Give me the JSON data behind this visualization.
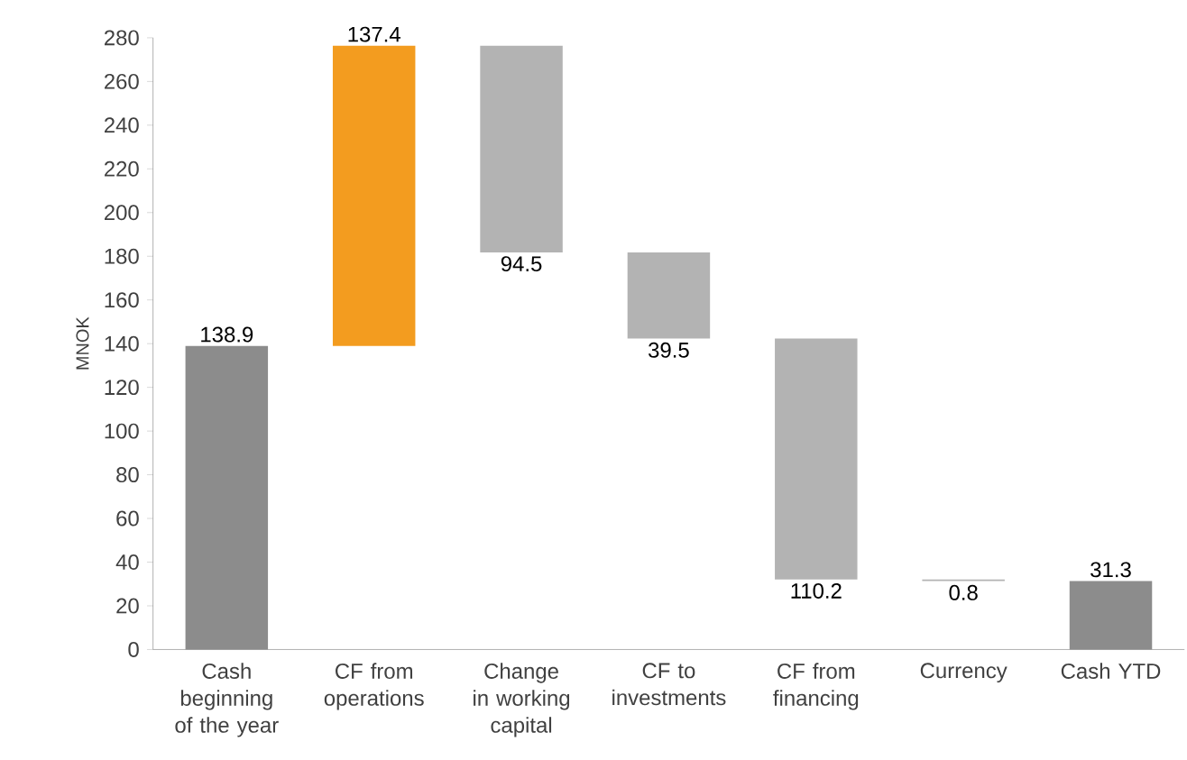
{
  "chart_data": {
    "type": "bar",
    "ylabel": "MNOK",
    "categories": [
      "Cash beginning of the year",
      "CF from operations",
      "Change in working capital",
      "CF to investments",
      "CF from financing",
      "Currency",
      "Cash YTD"
    ],
    "values": [
      138.9,
      137.4,
      -94.5,
      -39.5,
      -110.2,
      -0.8,
      31.3
    ],
    "base": [
      0,
      138.9,
      276.3,
      181.8,
      142.3,
      32.1,
      0
    ],
    "colors": [
      "#8c8c8c",
      "#f39c1f",
      "#b3b3b3",
      "#b3b3b3",
      "#b3b3b3",
      "#b3b3b3",
      "#8c8c8c"
    ],
    "value_labels": [
      "138.9",
      "137.4",
      "94.5",
      "39.5",
      "110.2",
      "0.8",
      "31.3"
    ],
    "ylim": [
      0,
      280
    ],
    "yticks": [
      0,
      20,
      40,
      60,
      80,
      100,
      120,
      140,
      160,
      180,
      200,
      220,
      240,
      260,
      280
    ]
  }
}
